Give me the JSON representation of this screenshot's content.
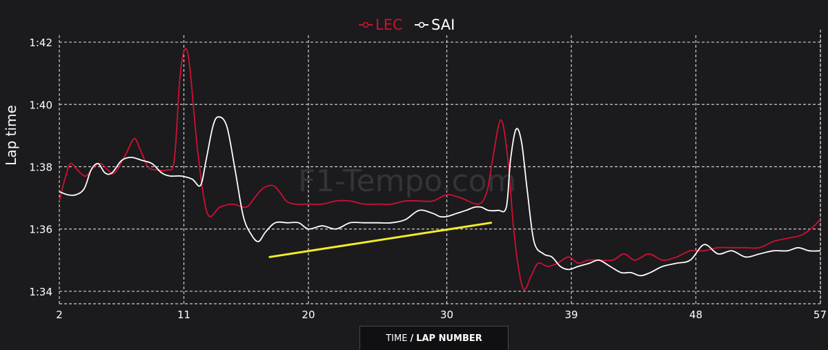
{
  "chart_data": {
    "type": "line",
    "xlabel": "TIME / LAP NUMBER",
    "xlabel_parts": {
      "time": "TIME",
      "sep": "/",
      "lap": "LAP NUMBER"
    },
    "ylabel": "Lap time",
    "xlim": [
      2,
      57
    ],
    "ylim": [
      93.6,
      102.4
    ],
    "x_ticks": [
      2,
      11,
      20,
      30,
      39,
      48,
      57
    ],
    "y_ticks": [
      {
        "value": 94,
        "label": "1:34"
      },
      {
        "value": 96,
        "label": "1:36"
      },
      {
        "value": 98,
        "label": "1:38"
      },
      {
        "value": 100,
        "label": "1:40"
      },
      {
        "value": 102,
        "label": "1:42"
      }
    ],
    "grid": true,
    "legend_position": "top-center",
    "watermark": "F1-Tempo.com",
    "series": [
      {
        "name": "LEC",
        "color": "#d0102f",
        "points": [
          [
            2,
            96.9
          ],
          [
            2.4,
            97.6
          ],
          [
            2.8,
            98.1
          ],
          [
            3.3,
            97.9
          ],
          [
            3.9,
            97.7
          ],
          [
            4.5,
            98.0
          ],
          [
            5,
            98.1
          ],
          [
            5.5,
            97.9
          ],
          [
            6,
            97.8
          ],
          [
            6.8,
            98.4
          ],
          [
            7.4,
            98.9
          ],
          [
            7.8,
            98.6
          ],
          [
            8.4,
            98.0
          ],
          [
            9,
            97.9
          ],
          [
            9.8,
            97.9
          ],
          [
            10.3,
            98.2
          ],
          [
            10.7,
            100.8
          ],
          [
            11.05,
            101.75
          ],
          [
            11.4,
            101.3
          ],
          [
            12,
            98.5
          ],
          [
            12.7,
            96.5
          ],
          [
            13.6,
            96.7
          ],
          [
            14.5,
            96.8
          ],
          [
            15.5,
            96.7
          ],
          [
            16.1,
            97.0
          ],
          [
            16.7,
            97.3
          ],
          [
            17.4,
            97.4
          ],
          [
            17.9,
            97.2
          ],
          [
            18.4,
            96.9
          ],
          [
            19,
            96.8
          ],
          [
            20,
            96.8
          ],
          [
            21,
            96.8
          ],
          [
            22,
            96.9
          ],
          [
            23,
            96.9
          ],
          [
            24,
            96.8
          ],
          [
            25,
            96.8
          ],
          [
            26,
            96.8
          ],
          [
            27,
            96.9
          ],
          [
            28,
            96.9
          ],
          [
            29,
            96.9
          ],
          [
            30,
            97.1
          ],
          [
            31,
            97.0
          ],
          [
            32.3,
            96.8
          ],
          [
            32.9,
            97.2
          ],
          [
            33.3,
            98.2
          ],
          [
            33.9,
            99.5
          ],
          [
            34.4,
            98.3
          ],
          [
            34.9,
            95.7
          ],
          [
            35.5,
            94.1
          ],
          [
            36.1,
            94.5
          ],
          [
            36.6,
            94.9
          ],
          [
            37.3,
            94.8
          ],
          [
            38,
            94.9
          ],
          [
            38.8,
            95.1
          ],
          [
            39.5,
            94.9
          ],
          [
            40.2,
            95.0
          ],
          [
            41,
            95.0
          ],
          [
            42,
            95.0
          ],
          [
            42.8,
            95.2
          ],
          [
            43.6,
            95.0
          ],
          [
            44.6,
            95.2
          ],
          [
            45.6,
            95.0
          ],
          [
            46.6,
            95.1
          ],
          [
            47.6,
            95.3
          ],
          [
            48.6,
            95.3
          ],
          [
            49.6,
            95.4
          ],
          [
            50.6,
            95.4
          ],
          [
            51.6,
            95.4
          ],
          [
            52.6,
            95.4
          ],
          [
            53.6,
            95.6
          ],
          [
            54.6,
            95.7
          ],
          [
            55.6,
            95.8
          ],
          [
            56.3,
            96.0
          ],
          [
            57,
            96.3
          ]
        ]
      },
      {
        "name": "SAI",
        "color": "#ffffff",
        "points": [
          [
            2,
            97.2
          ],
          [
            2.6,
            97.1
          ],
          [
            3.2,
            97.1
          ],
          [
            3.8,
            97.3
          ],
          [
            4.3,
            97.9
          ],
          [
            4.8,
            98.1
          ],
          [
            5.3,
            97.8
          ],
          [
            5.8,
            97.8
          ],
          [
            6.5,
            98.2
          ],
          [
            7.2,
            98.3
          ],
          [
            8,
            98.2
          ],
          [
            8.7,
            98.1
          ],
          [
            9.4,
            97.8
          ],
          [
            10,
            97.7
          ],
          [
            10.8,
            97.7
          ],
          [
            11.6,
            97.6
          ],
          [
            12.2,
            97.4
          ],
          [
            12.6,
            98.2
          ],
          [
            13.1,
            99.3
          ],
          [
            13.5,
            99.6
          ],
          [
            14.1,
            99.3
          ],
          [
            14.7,
            97.9
          ],
          [
            15.3,
            96.4
          ],
          [
            15.9,
            95.8
          ],
          [
            16.4,
            95.6
          ],
          [
            16.9,
            95.9
          ],
          [
            17.6,
            96.2
          ],
          [
            18.5,
            96.2
          ],
          [
            19.3,
            96.2
          ],
          [
            20,
            96.0
          ],
          [
            21,
            96.1
          ],
          [
            22,
            96.0
          ],
          [
            23,
            96.2
          ],
          [
            24,
            96.2
          ],
          [
            25,
            96.2
          ],
          [
            26,
            96.2
          ],
          [
            27,
            96.3
          ],
          [
            28,
            96.6
          ],
          [
            29,
            96.5
          ],
          [
            29.5,
            96.4
          ],
          [
            30,
            96.4
          ],
          [
            30.7,
            96.5
          ],
          [
            31.4,
            96.6
          ],
          [
            32,
            96.7
          ],
          [
            32.5,
            96.7
          ],
          [
            33,
            96.6
          ],
          [
            33.7,
            96.6
          ],
          [
            34.3,
            96.7
          ],
          [
            34.6,
            98.2
          ],
          [
            35,
            99.2
          ],
          [
            35.4,
            98.8
          ],
          [
            35.8,
            97.3
          ],
          [
            36.3,
            95.6
          ],
          [
            37,
            95.2
          ],
          [
            37.6,
            95.1
          ],
          [
            38.2,
            94.8
          ],
          [
            38.8,
            94.7
          ],
          [
            39.5,
            94.8
          ],
          [
            40.3,
            94.9
          ],
          [
            41,
            95.0
          ],
          [
            41.8,
            94.8
          ],
          [
            42.6,
            94.6
          ],
          [
            43.3,
            94.6
          ],
          [
            44,
            94.5
          ],
          [
            44.7,
            94.6
          ],
          [
            45.6,
            94.8
          ],
          [
            46.6,
            94.9
          ],
          [
            47.6,
            95.0
          ],
          [
            48.6,
            95.5
          ],
          [
            49.6,
            95.2
          ],
          [
            50.6,
            95.3
          ],
          [
            51.6,
            95.1
          ],
          [
            52.6,
            95.2
          ],
          [
            53.6,
            95.3
          ],
          [
            54.6,
            95.3
          ],
          [
            55.4,
            95.4
          ],
          [
            56.2,
            95.3
          ],
          [
            57,
            95.3
          ]
        ]
      }
    ],
    "annotation": {
      "type": "trend-line",
      "color": "#f2ee2a",
      "points": [
        [
          17.2,
          95.1
        ],
        [
          33.2,
          96.2
        ]
      ]
    }
  }
}
